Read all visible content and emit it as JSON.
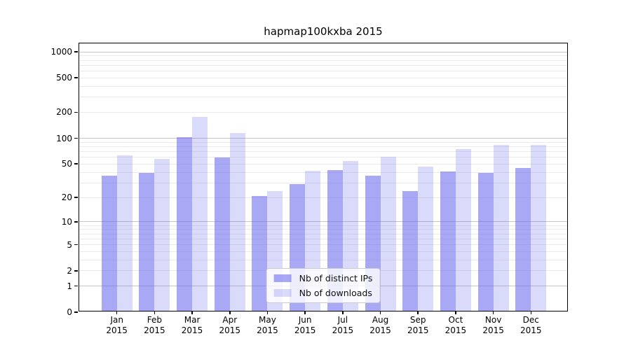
{
  "chart_data": {
    "type": "bar",
    "title": "hapmap100kxba 2015",
    "categories": [
      {
        "month": "Jan",
        "year": "2015"
      },
      {
        "month": "Feb",
        "year": "2015"
      },
      {
        "month": "Mar",
        "year": "2015"
      },
      {
        "month": "Apr",
        "year": "2015"
      },
      {
        "month": "May",
        "year": "2015"
      },
      {
        "month": "Jun",
        "year": "2015"
      },
      {
        "month": "Jul",
        "year": "2015"
      },
      {
        "month": "Aug",
        "year": "2015"
      },
      {
        "month": "Sep",
        "year": "2015"
      },
      {
        "month": "Oct",
        "year": "2015"
      },
      {
        "month": "Nov",
        "year": "2015"
      },
      {
        "month": "Dec",
        "year": "2015"
      }
    ],
    "series": [
      {
        "name": "Nb of distinct IPs",
        "color": "rgba(102,102,238,0.57)",
        "values": [
          35,
          38,
          100,
          57,
          20,
          28,
          41,
          35,
          23,
          39,
          38,
          43
        ]
      },
      {
        "name": "Nb of downloads",
        "color": "rgba(102,102,238,0.24)",
        "values": [
          61,
          55,
          170,
          110,
          23,
          40,
          52,
          59,
          45,
          72,
          80,
          81
        ]
      }
    ],
    "yscale": "log1p",
    "ylim": [
      0,
      1250
    ],
    "yticks": [
      0,
      1,
      2,
      5,
      10,
      20,
      50,
      100,
      200,
      500,
      1000
    ],
    "gridlines_major": [
      1,
      10,
      100,
      1000
    ],
    "gridlines_minor": [
      2,
      3,
      4,
      5,
      6,
      7,
      8,
      9,
      20,
      30,
      40,
      50,
      60,
      70,
      80,
      90,
      200,
      300,
      400,
      500,
      600,
      700,
      800,
      900
    ],
    "grid": true,
    "legend_position": "lower center",
    "colors": {
      "major_grid": "#c6c6c6",
      "minor_grid": "#ebebeb",
      "spine": "#000000"
    }
  }
}
